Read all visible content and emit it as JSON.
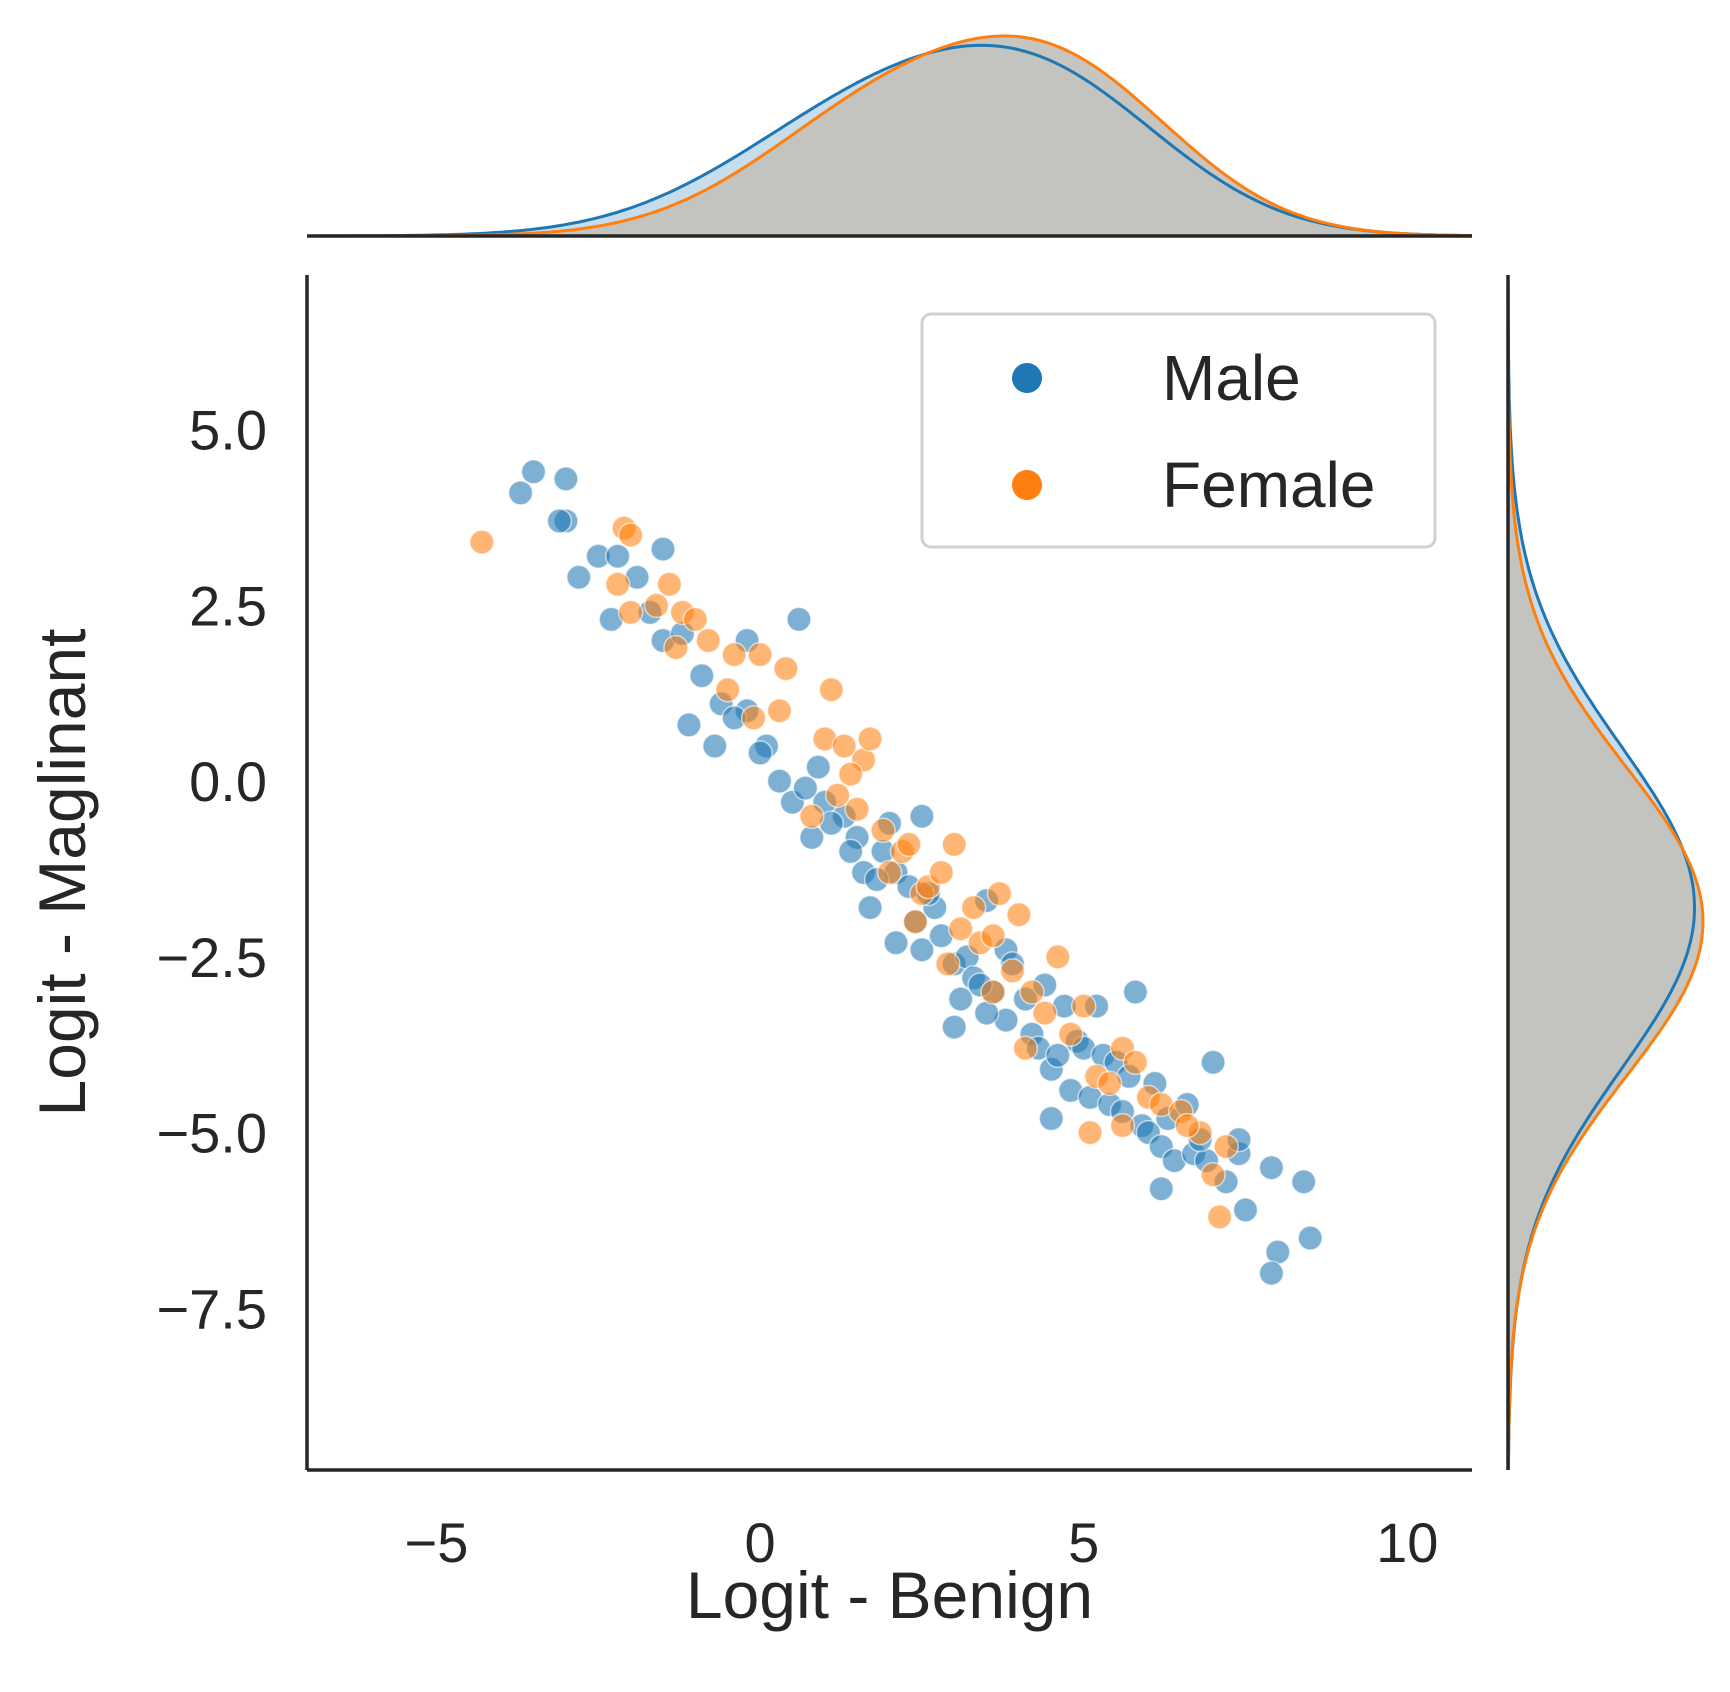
{
  "chart_data": {
    "type": "scatter",
    "title": "",
    "xlabel": "Logit - Benign",
    "ylabel": "Logit - Maglinant",
    "xlim": [
      -7,
      11
    ],
    "ylim": [
      -9.8,
      7.2
    ],
    "xticks": [
      -5,
      0,
      5,
      10
    ],
    "xtick_labels": [
      "−5",
      "0",
      "5",
      "10"
    ],
    "yticks": [
      5.0,
      2.5,
      0.0,
      -2.5,
      -5.0,
      -7.5
    ],
    "ytick_labels": [
      "5.0",
      "2.5",
      "0.0",
      "−2.5",
      "−5.0",
      "−7.5"
    ],
    "grid": false,
    "legend": {
      "position": "top-right"
    },
    "relationship": {
      "slope": -1.02,
      "intercept": 0.62,
      "spread": 0.35
    },
    "marginals": {
      "top": {
        "type": "kde",
        "variable": "Logit - Benign",
        "overlap_color": "#c3c2bd"
      },
      "right": {
        "type": "kde",
        "variable": "Logit - Maglinant",
        "overlap_color": "#c3c2bd"
      }
    },
    "series": [
      {
        "name": "Male",
        "color": "#1f77b4",
        "marginal_x_mixture": [
          [
            1.8,
            2.2,
            0.55
          ],
          [
            4.6,
            1.9,
            0.45
          ]
        ],
        "marginal_y_mixture": [
          [
            -1.8,
            2.3,
            1.0
          ]
        ],
        "points": [
          [
            -3.5,
            4.4
          ],
          [
            -3.7,
            4.1
          ],
          [
            -3.0,
            4.3
          ],
          [
            -3.0,
            3.7
          ],
          [
            -3.1,
            3.7
          ],
          [
            -2.8,
            2.9
          ],
          [
            -2.5,
            3.2
          ],
          [
            -2.2,
            3.2
          ],
          [
            -2.3,
            2.3
          ],
          [
            -1.5,
            3.3
          ],
          [
            -1.9,
            2.9
          ],
          [
            -1.5,
            2.0
          ],
          [
            -1.2,
            2.1
          ],
          [
            -0.9,
            1.5
          ],
          [
            -1.1,
            0.8
          ],
          [
            -0.6,
            1.1
          ],
          [
            -0.2,
            2.0
          ],
          [
            -0.7,
            0.5
          ],
          [
            -0.2,
            1.0
          ],
          [
            0.1,
            0.5
          ],
          [
            0.6,
            2.3
          ],
          [
            0.3,
            0.0
          ],
          [
            0.5,
            -0.3
          ],
          [
            0.9,
            0.2
          ],
          [
            1.0,
            -0.3
          ],
          [
            0.8,
            -0.8
          ],
          [
            1.3,
            -0.5
          ],
          [
            1.5,
            -0.8
          ],
          [
            1.6,
            -1.3
          ],
          [
            1.4,
            -1.0
          ],
          [
            1.9,
            -1.0
          ],
          [
            2.0,
            -0.6
          ],
          [
            2.1,
            -1.3
          ],
          [
            1.7,
            -1.8
          ],
          [
            2.4,
            -2.0
          ],
          [
            2.3,
            -1.5
          ],
          [
            2.5,
            -2.4
          ],
          [
            2.7,
            -1.8
          ],
          [
            2.8,
            -2.2
          ],
          [
            2.1,
            -2.3
          ],
          [
            2.5,
            -0.5
          ],
          [
            3.0,
            -2.6
          ],
          [
            3.1,
            -3.1
          ],
          [
            3.2,
            -2.5
          ],
          [
            3.3,
            -2.8
          ],
          [
            3.0,
            -3.5
          ],
          [
            3.6,
            -3.0
          ],
          [
            3.5,
            -1.7
          ],
          [
            3.8,
            -2.4
          ],
          [
            4.1,
            -3.1
          ],
          [
            4.2,
            -3.6
          ],
          [
            3.8,
            -3.4
          ],
          [
            4.4,
            -2.9
          ],
          [
            4.5,
            -4.1
          ],
          [
            4.3,
            -3.8
          ],
          [
            4.7,
            -3.2
          ],
          [
            4.9,
            -3.7
          ],
          [
            4.8,
            -4.4
          ],
          [
            5.1,
            -4.5
          ],
          [
            5.0,
            -3.8
          ],
          [
            5.3,
            -3.9
          ],
          [
            5.5,
            -4.0
          ],
          [
            5.4,
            -4.6
          ],
          [
            5.6,
            -4.7
          ],
          [
            5.2,
            -3.2
          ],
          [
            5.8,
            -3.0
          ],
          [
            5.9,
            -4.9
          ],
          [
            6.0,
            -5.0
          ],
          [
            6.2,
            -5.2
          ],
          [
            6.4,
            -5.4
          ],
          [
            6.1,
            -4.3
          ],
          [
            6.3,
            -4.8
          ],
          [
            6.6,
            -4.6
          ],
          [
            6.7,
            -5.3
          ],
          [
            6.9,
            -5.4
          ],
          [
            7.0,
            -4.0
          ],
          [
            7.2,
            -5.7
          ],
          [
            7.4,
            -5.3
          ],
          [
            7.5,
            -6.1
          ],
          [
            7.9,
            -5.5
          ],
          [
            8.4,
            -5.7
          ],
          [
            8.5,
            -6.5
          ],
          [
            8.0,
            -6.7
          ],
          [
            7.9,
            -7.0
          ],
          [
            7.4,
            -5.1
          ],
          [
            6.2,
            -5.8
          ],
          [
            4.5,
            -4.8
          ],
          [
            3.5,
            -3.3
          ],
          [
            0.0,
            0.4
          ],
          [
            -0.4,
            0.9
          ],
          [
            1.1,
            -0.6
          ],
          [
            2.6,
            -1.6
          ],
          [
            3.9,
            -2.6
          ],
          [
            5.7,
            -4.2
          ],
          [
            6.8,
            -5.1
          ],
          [
            -1.7,
            2.4
          ],
          [
            0.7,
            -0.1
          ],
          [
            1.8,
            -1.4
          ],
          [
            3.4,
            -2.9
          ],
          [
            4.6,
            -3.9
          ]
        ]
      },
      {
        "name": "Female",
        "color": "#ff7f0e",
        "marginal_x_mixture": [
          [
            2.0,
            2.0,
            0.5
          ],
          [
            4.8,
            1.8,
            0.5
          ]
        ],
        "marginal_y_mixture": [
          [
            -2.0,
            2.2,
            1.0
          ]
        ],
        "points": [
          [
            -4.3,
            3.4
          ],
          [
            -2.1,
            3.6
          ],
          [
            -2.0,
            3.5
          ],
          [
            -2.2,
            2.8
          ],
          [
            -2.0,
            2.4
          ],
          [
            -1.6,
            2.5
          ],
          [
            -1.4,
            2.8
          ],
          [
            -1.2,
            2.4
          ],
          [
            -1.0,
            2.3
          ],
          [
            -0.8,
            2.0
          ],
          [
            -1.3,
            1.9
          ],
          [
            -0.4,
            1.8
          ],
          [
            -0.5,
            1.3
          ],
          [
            0.0,
            1.8
          ],
          [
            0.4,
            1.6
          ],
          [
            0.3,
            1.0
          ],
          [
            1.1,
            1.3
          ],
          [
            1.0,
            0.6
          ],
          [
            1.3,
            0.5
          ],
          [
            1.6,
            0.3
          ],
          [
            1.4,
            0.1
          ],
          [
            1.2,
            -0.2
          ],
          [
            1.5,
            -0.4
          ],
          [
            1.7,
            0.6
          ],
          [
            1.9,
            -0.7
          ],
          [
            2.0,
            -1.3
          ],
          [
            2.2,
            -1.0
          ],
          [
            2.3,
            -0.9
          ],
          [
            2.5,
            -1.6
          ],
          [
            2.6,
            -1.5
          ],
          [
            2.4,
            -2.0
          ],
          [
            2.8,
            -1.3
          ],
          [
            3.0,
            -0.9
          ],
          [
            3.1,
            -2.1
          ],
          [
            3.3,
            -1.8
          ],
          [
            3.4,
            -2.3
          ],
          [
            3.6,
            -2.2
          ],
          [
            3.7,
            -1.6
          ],
          [
            3.9,
            -2.7
          ],
          [
            4.0,
            -1.9
          ],
          [
            4.2,
            -3.0
          ],
          [
            4.4,
            -3.3
          ],
          [
            4.6,
            -2.5
          ],
          [
            4.8,
            -3.6
          ],
          [
            5.0,
            -3.2
          ],
          [
            5.2,
            -4.2
          ],
          [
            5.4,
            -4.3
          ],
          [
            5.6,
            -3.8
          ],
          [
            5.8,
            -4.0
          ],
          [
            6.0,
            -4.5
          ],
          [
            6.2,
            -4.6
          ],
          [
            6.5,
            -4.7
          ],
          [
            6.8,
            -5.0
          ],
          [
            7.0,
            -5.6
          ],
          [
            7.2,
            -5.2
          ],
          [
            7.1,
            -6.2
          ],
          [
            6.6,
            -4.9
          ],
          [
            5.1,
            -5.0
          ],
          [
            5.6,
            -4.9
          ],
          [
            4.1,
            -3.8
          ],
          [
            0.8,
            -0.5
          ],
          [
            2.9,
            -2.6
          ],
          [
            -0.1,
            0.9
          ],
          [
            3.6,
            -3.0
          ]
        ]
      }
    ]
  }
}
